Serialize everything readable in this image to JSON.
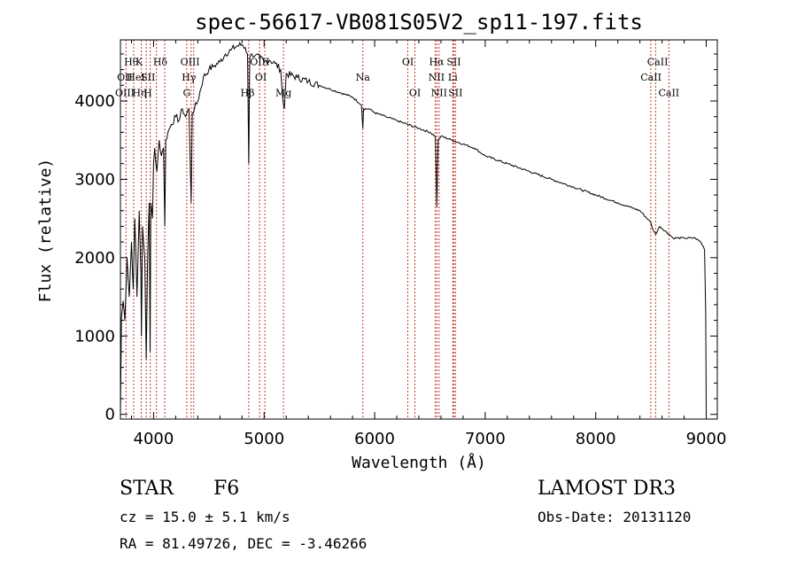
{
  "chart_data": {
    "type": "line",
    "title": "spec-56617-VB081S05V2_sp11-197.fits",
    "xlabel": "Wavelength (Å)",
    "ylabel": "Flux (relative)",
    "xlim": [
      3700,
      9100
    ],
    "ylim": [
      -60,
      4780
    ],
    "xticks": [
      4000,
      5000,
      6000,
      7000,
      8000,
      9000
    ],
    "yticks": [
      0,
      1000,
      2000,
      3000,
      4000
    ],
    "series": [
      {
        "name": "spectrum",
        "x": [
          3700,
          3710,
          3725,
          3740,
          3760,
          3780,
          3800,
          3815,
          3830,
          3850,
          3870,
          3885,
          3890,
          3900,
          3920,
          3933,
          3945,
          3960,
          3968,
          3975,
          3990,
          4000,
          4010,
          4030,
          4050,
          4070,
          4090,
          4101,
          4110,
          4130,
          4160,
          4200,
          4230,
          4260,
          4290,
          4320,
          4340,
          4350,
          4370,
          4400,
          4450,
          4500,
          4550,
          4600,
          4650,
          4700,
          4750,
          4800,
          4830,
          4850,
          4861,
          4870,
          4890,
          4920,
          4960,
          5000,
          5050,
          5100,
          5150,
          5170,
          5183,
          5200,
          5300,
          5400,
          5500,
          5600,
          5700,
          5800,
          5880,
          5893,
          5900,
          5950,
          6000,
          6100,
          6200,
          6300,
          6400,
          6500,
          6550,
          6563,
          6575,
          6600,
          6700,
          6800,
          6900,
          7000,
          7200,
          7400,
          7600,
          7800,
          8000,
          8200,
          8400,
          8498,
          8520,
          8542,
          8580,
          8662,
          8700,
          8800,
          8900,
          8950,
          8970,
          8985,
          8995,
          9000
        ],
        "y": [
          0,
          1250,
          1450,
          1200,
          2000,
          1500,
          2200,
          1600,
          2500,
          1500,
          2600,
          1800,
          1000,
          2400,
          2000,
          700,
          1900,
          2700,
          800,
          2700,
          2500,
          3200,
          3400,
          3100,
          3500,
          3300,
          3400,
          2400,
          3500,
          3600,
          3700,
          3800,
          3750,
          3900,
          3800,
          3900,
          2700,
          3850,
          3900,
          4000,
          4300,
          4400,
          4450,
          4500,
          4600,
          4650,
          4700,
          4720,
          4680,
          4600,
          3200,
          4550,
          4600,
          4580,
          4550,
          4500,
          4520,
          4480,
          4400,
          4000,
          3900,
          4350,
          4300,
          4250,
          4200,
          4150,
          4100,
          4050,
          3950,
          3650,
          3900,
          3900,
          3850,
          3800,
          3750,
          3700,
          3650,
          3600,
          3550,
          2650,
          3500,
          3550,
          3500,
          3450,
          3400,
          3300,
          3200,
          3100,
          3000,
          2900,
          2800,
          2700,
          2600,
          2450,
          2350,
          2300,
          2400,
          2300,
          2250,
          2250,
          2250,
          2200,
          2150,
          2100,
          1300,
          0
        ]
      }
    ],
    "line_markers": {
      "color": "#c0392b",
      "wavelengths": [
        3750,
        3820,
        3889,
        3934,
        3970,
        4026,
        4101,
        4300,
        4340,
        4363,
        4861,
        4959,
        5007,
        5175,
        5893,
        6300,
        6364,
        6548,
        6563,
        6583,
        6707,
        6716,
        6731,
        8498,
        8542,
        8662
      ]
    },
    "line_labels": [
      {
        "text": "Hθ",
        "x": 3798,
        "y": 4460
      },
      {
        "text": "K",
        "x": 3868,
        "y": 4460
      },
      {
        "text": "Hδ",
        "x": 4060,
        "y": 4460
      },
      {
        "text": "OII",
        "x": 3740,
        "y": 4260
      },
      {
        "text": "HeI",
        "x": 3840,
        "y": 4260
      },
      {
        "text": "SII",
        "x": 3950,
        "y": 4260
      },
      {
        "text": "OIII",
        "x": 3740,
        "y": 4060
      },
      {
        "text": "Hη",
        "x": 3872,
        "y": 4060
      },
      {
        "text": "H",
        "x": 3948,
        "y": 4060
      },
      {
        "text": "OIII",
        "x": 4330,
        "y": 4460
      },
      {
        "text": "Hγ",
        "x": 4320,
        "y": 4260
      },
      {
        "text": "G",
        "x": 4300,
        "y": 4060
      },
      {
        "text": "Hβ",
        "x": 4850,
        "y": 4060
      },
      {
        "text": "OIII",
        "x": 4960,
        "y": 4460
      },
      {
        "text": "OI",
        "x": 4970,
        "y": 4260
      },
      {
        "text": "Mg",
        "x": 5175,
        "y": 4060
      },
      {
        "text": "Na",
        "x": 5893,
        "y": 4260
      },
      {
        "text": "OI",
        "x": 6300,
        "y": 4460
      },
      {
        "text": "OI",
        "x": 6364,
        "y": 4060
      },
      {
        "text": "Hα",
        "x": 6560,
        "y": 4460
      },
      {
        "text": "SII",
        "x": 6716,
        "y": 4460
      },
      {
        "text": "NII",
        "x": 6560,
        "y": 4260
      },
      {
        "text": "Li",
        "x": 6707,
        "y": 4260
      },
      {
        "text": "NII",
        "x": 6583,
        "y": 4060
      },
      {
        "text": "SII",
        "x": 6731,
        "y": 4060
      },
      {
        "text": "CaII",
        "x": 8560,
        "y": 4460
      },
      {
        "text": "CaII",
        "x": 8500,
        "y": 4260
      },
      {
        "text": "CaII",
        "x": 8662,
        "y": 4060
      }
    ]
  },
  "info": {
    "object_class": "STAR",
    "subclass": "F6",
    "redshift": "cz =  15.0 ± 5.1 km/s",
    "coords": "RA =  81.49726, DEC =  -3.46266",
    "survey": "LAMOST DR3",
    "obs_date": "Obs-Date: 20131120"
  }
}
